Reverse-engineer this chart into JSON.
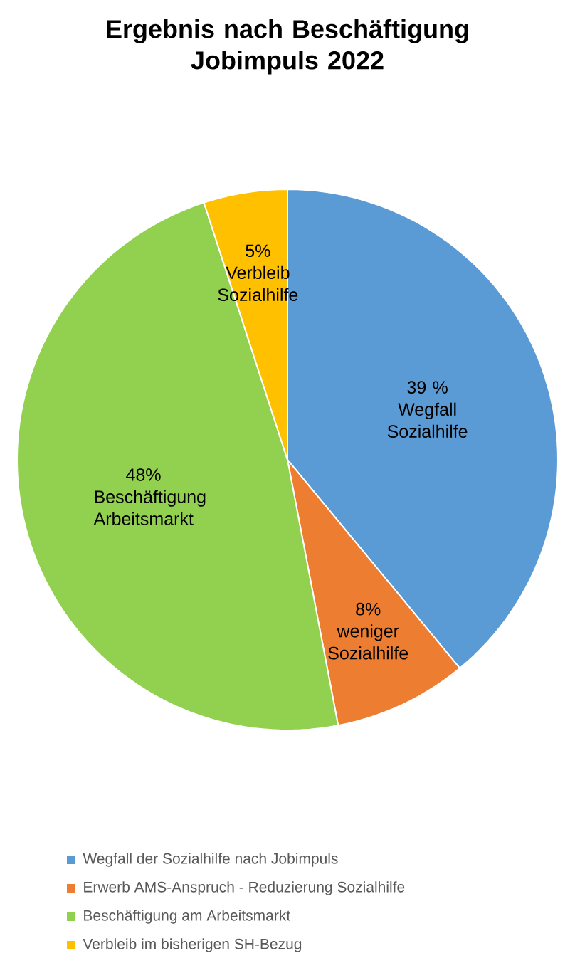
{
  "chart_data": {
    "type": "pie",
    "title": "Ergebnis nach Beschäftigung Jobimpuls 2022",
    "categories": [
      "Wegfall der Sozialhilfe nach Jobimpuls",
      "Erwerb AMS-Anspruch  - Reduzierung Sozialhilfe",
      "Beschäftigung am Arbeitsmarkt",
      "Verbleib im bisherigen SH-Bezug"
    ],
    "values": [
      39,
      8,
      48,
      5
    ],
    "colors": [
      "#5b9bd5",
      "#ed7d31",
      "#92d050",
      "#ffc000"
    ],
    "value_labels": [
      "39 %",
      "8%",
      "48%",
      "5%"
    ],
    "annotations": [
      "Wegfall Sozialhilfe",
      "weniger Sozialhilfe",
      "Beschäftigung Arbeitsmarkt",
      "Verbleib Sozialhilfe"
    ],
    "legend": "bottom"
  }
}
